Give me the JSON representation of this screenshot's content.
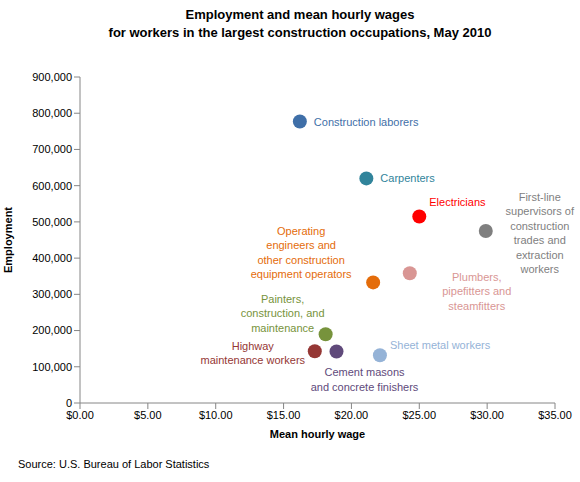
{
  "chart_data": {
    "type": "scatter",
    "title": "Employment and mean hourly wages for workers in the largest construction occupations, May 2010",
    "x_label": "Mean hourly wage",
    "y_label": "Employment",
    "source": "Source: U.S. Bureau of Labor Statistics",
    "xlim": [
      0,
      35
    ],
    "xticks": [
      {
        "value": 0,
        "label": "$0.00"
      },
      {
        "value": 5,
        "label": "$5.00"
      },
      {
        "value": 10,
        "label": "$10.00"
      },
      {
        "value": 15,
        "label": "$15.00"
      },
      {
        "value": 20,
        "label": "$20.00"
      },
      {
        "value": 25,
        "label": "$25.00"
      },
      {
        "value": 30,
        "label": "$30.00"
      },
      {
        "value": 35,
        "label": "$35.00"
      }
    ],
    "ylim": [
      0,
      900000
    ],
    "yticks": [
      0,
      {
        "value": 100000,
        "label": "100,000"
      },
      {
        "value": 200000,
        "label": "200,000"
      },
      {
        "value": 300000,
        "label": "300,000"
      },
      {
        "value": 400000,
        "label": "400,000"
      },
      {
        "value": 500000,
        "label": "500,000"
      },
      {
        "value": 600000,
        "label": "600,000"
      },
      {
        "value": 700000,
        "label": "700,000"
      },
      {
        "value": 800000,
        "label": "800,000"
      },
      {
        "value": 900000,
        "label": "900,000"
      }
    ],
    "grid": false,
    "marker": "circle",
    "series": [
      {
        "name": "Construction laborers",
        "color": "#3f6fa8",
        "x": [
          16.2
        ],
        "values": [
          777000
        ]
      },
      {
        "name": "Carpenters",
        "color": "#31849b",
        "x": [
          21.1
        ],
        "values": [
          620000
        ]
      },
      {
        "name": "Electricians",
        "color": "#ff0000",
        "x": [
          25.0
        ],
        "values": [
          515000
        ]
      },
      {
        "name": "First-line supervisors of construction trades and extraction workers",
        "color": "#7f7f7f",
        "x": [
          29.9
        ],
        "values": [
          475000
        ]
      },
      {
        "name": "Plumbers, pipefitters and steamfitters",
        "color": "#d99694",
        "x": [
          24.3
        ],
        "values": [
          358000
        ]
      },
      {
        "name": "Operating engineers and other construction equipment operators",
        "color": "#e46c0a",
        "x": [
          21.6
        ],
        "values": [
          333000
        ]
      },
      {
        "name": "Painters, construction, and maintenance",
        "color": "#77933c",
        "x": [
          18.1
        ],
        "values": [
          190000
        ]
      },
      {
        "name": "Highway maintenance workers",
        "color": "#953735",
        "x": [
          17.3
        ],
        "values": [
          143000
        ]
      },
      {
        "name": "Cement masons and concrete finishers",
        "color": "#604a7b",
        "x": [
          18.9
        ],
        "values": [
          142000
        ]
      },
      {
        "name": "Sheet metal workers",
        "color": "#95b3d7",
        "x": [
          22.1
        ],
        "values": [
          132000
        ]
      }
    ]
  }
}
